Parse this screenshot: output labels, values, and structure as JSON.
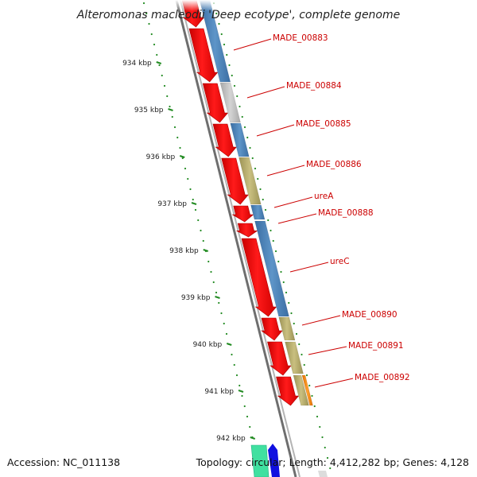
{
  "title": "Alteromonas macleodii 'Deep ecotype', complete genome",
  "footer": {
    "accession": "Accession: NC_011138",
    "topology": "Topology: circular; Length: 4,412,282 bp; Genes: 4,128"
  },
  "colors": {
    "arrow_red": "#ff0000",
    "label_red": "#cc0000",
    "bar_blue": "#4a7fb5",
    "bar_gray": "#c0c0c0",
    "bar_olive": "#b5ab6a",
    "bar_orange": "#ff8c00",
    "tick_green": "#228b22",
    "backbone_gray": "#8c8c8c",
    "bottom_teal": "#40e0a0",
    "bottom_blue": "#1010e0"
  },
  "ticks": [
    {
      "label": "934 kbp"
    },
    {
      "label": "935 kbp"
    },
    {
      "label": "936 kbp"
    },
    {
      "label": "937 kbp"
    },
    {
      "label": "938 kbp"
    },
    {
      "label": "939 kbp"
    },
    {
      "label": "940 kbp"
    },
    {
      "label": "941 kbp"
    },
    {
      "label": "942 kbp"
    }
  ],
  "genes": [
    {
      "name": "MADE_00883",
      "class": "blue"
    },
    {
      "name": "MADE_00884",
      "class": "gray"
    },
    {
      "name": "MADE_00885",
      "class": "blue"
    },
    {
      "name": "MADE_00886",
      "class": "olive"
    },
    {
      "name": "ureA",
      "class": "blue"
    },
    {
      "name": "MADE_00888",
      "class": "blue"
    },
    {
      "name": "ureC",
      "class": "blue"
    },
    {
      "name": "MADE_00890",
      "class": "olive"
    },
    {
      "name": "MADE_00891",
      "class": "olive"
    },
    {
      "name": "MADE_00892",
      "class": "olive"
    }
  ]
}
